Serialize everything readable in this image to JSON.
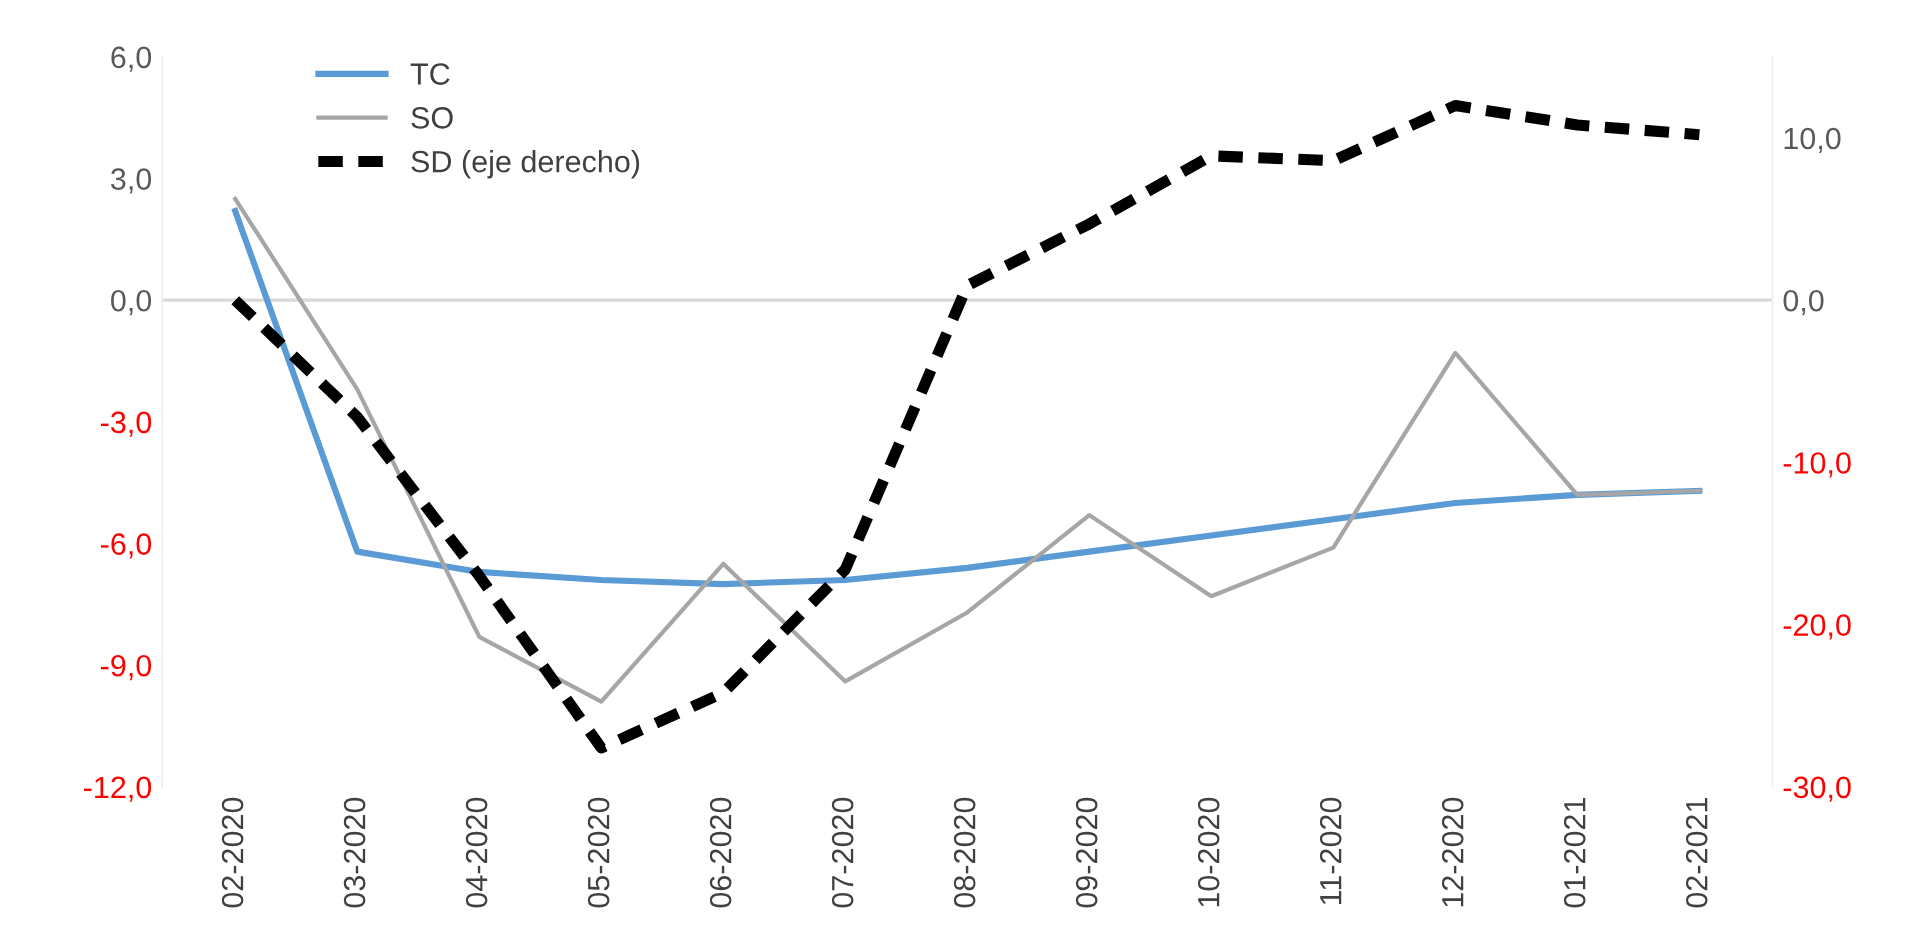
{
  "chart_data": {
    "type": "line",
    "categories": [
      "02-2020",
      "03-2020",
      "04-2020",
      "05-2020",
      "06-2020",
      "07-2020",
      "08-2020",
      "09-2020",
      "10-2020",
      "11-2020",
      "12-2020",
      "01-2021",
      "02-2021"
    ],
    "series": [
      {
        "name": "TC",
        "color": "#5b9bd5",
        "line_style": "solid",
        "values": [
          2.2,
          -6.2,
          -6.7,
          -6.9,
          -7.0,
          -6.9,
          -6.6,
          -6.2,
          -5.8,
          -5.4,
          -5.0,
          -4.8,
          -4.7
        ]
      },
      {
        "name": "SO",
        "color": "#a6a6a6",
        "line_style": "solid",
        "values": [
          2.5,
          -2.2,
          -8.3,
          -9.9,
          -6.5,
          -9.4,
          -7.7,
          -5.3,
          -7.3,
          -6.1,
          -1.3,
          -4.8,
          -4.7
        ]
      },
      {
        "name": "SD (eje derecho)",
        "color": "#000000",
        "line_style": "dashed",
        "axis": "y2",
        "values": [
          0.0,
          -7.2,
          -17.0,
          -27.6,
          -24.2,
          -16.6,
          0.9,
          4.7,
          8.9,
          8.6,
          12.0,
          10.8,
          10.2
        ]
      }
    ],
    "ylim": [
      -12,
      6
    ],
    "yticks": [
      {
        "value": -12,
        "label": "-12,0"
      },
      {
        "value": -9,
        "label": "-9,0"
      },
      {
        "value": -6,
        "label": "-6,0"
      },
      {
        "value": -3,
        "label": "-3,0"
      },
      {
        "value": 0,
        "label": "0,0"
      },
      {
        "value": 3,
        "label": "3,0"
      },
      {
        "value": 6,
        "label": "6,0"
      }
    ],
    "y2lim": [
      -30,
      15
    ],
    "y2ticks": [
      {
        "value": -30,
        "label": "-30,0"
      },
      {
        "value": -20,
        "label": "-20,0"
      },
      {
        "value": -10,
        "label": "-10,0"
      },
      {
        "value": 0,
        "label": "0,0"
      },
      {
        "value": 10,
        "label": "10,0"
      }
    ],
    "ref_lines": [
      {
        "axis": "y",
        "value": 0,
        "color": "#d9d9d9"
      }
    ],
    "grid": false,
    "legend": "top left",
    "marker": "none"
  }
}
